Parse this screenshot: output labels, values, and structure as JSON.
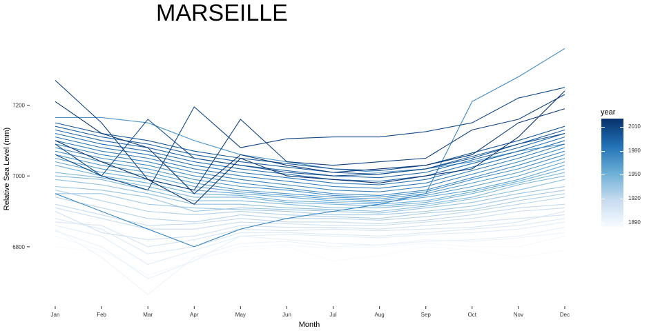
{
  "chart_data": {
    "type": "line",
    "title": "MARSEILLE",
    "xlabel": "Month",
    "ylabel": "Relative Sea Level (mm)",
    "categories": [
      "Jan",
      "Feb",
      "Mar",
      "Apr",
      "May",
      "Jun",
      "Jul",
      "Aug",
      "Sep",
      "Oct",
      "Nov",
      "Dec"
    ],
    "yticks": [
      6800,
      7000,
      7200
    ],
    "ylim": [
      6640,
      7380
    ],
    "grid": false,
    "legend": {
      "title": "year",
      "position": "right",
      "type": "colorbar",
      "range": [
        1885,
        2020
      ],
      "ticks": [
        1890,
        1920,
        1950,
        1980,
        2010
      ],
      "colors": [
        "#f7fbff",
        "#c6dbef",
        "#6baed6",
        "#2171b5",
        "#08306b"
      ]
    },
    "series": [
      {
        "year": 1885,
        "values": [
          6800,
          6785,
          6760,
          6770,
          6790,
          6800,
          6760,
          6775,
          6800,
          6790,
          6770,
          6790
        ]
      },
      {
        "year": 1888,
        "values": [
          6830,
          6790,
          6720,
          6760,
          6800,
          6805,
          6795,
          6800,
          6810,
          6800,
          6800,
          6830
        ]
      },
      {
        "year": 1892,
        "values": [
          6850,
          6770,
          6665,
          6770,
          6810,
          6815,
          6800,
          6805,
          6820,
          6815,
          6825,
          6840
        ]
      },
      {
        "year": 1896,
        "values": [
          6845,
          6800,
          6710,
          6760,
          6830,
          6820,
          6810,
          6805,
          6815,
          6820,
          6830,
          6855
        ]
      },
      {
        "year": 1900,
        "values": [
          6860,
          6830,
          6750,
          6790,
          6830,
          6835,
          6830,
          6825,
          6835,
          6840,
          6850,
          6870
        ]
      },
      {
        "year": 1904,
        "values": [
          6880,
          6850,
          6780,
          6800,
          6840,
          6840,
          6835,
          6830,
          6840,
          6850,
          6860,
          6880
        ]
      },
      {
        "year": 1908,
        "values": [
          6870,
          6860,
          6800,
          6820,
          6850,
          6845,
          6850,
          6845,
          6850,
          6855,
          6870,
          6900
        ]
      },
      {
        "year": 1912,
        "values": [
          6900,
          6840,
          6820,
          6830,
          6860,
          6855,
          6855,
          6850,
          6860,
          6870,
          6880,
          6890
        ]
      },
      {
        "year": 1916,
        "values": [
          6910,
          6880,
          6850,
          6850,
          6870,
          6865,
          6860,
          6860,
          6870,
          6880,
          6900,
          6910
        ]
      },
      {
        "year": 1920,
        "values": [
          6920,
          6890,
          6860,
          6865,
          6880,
          6870,
          6870,
          6865,
          6875,
          6890,
          6910,
          6920
        ]
      },
      {
        "year": 1924,
        "values": [
          6940,
          6910,
          6880,
          6870,
          6890,
          6880,
          6880,
          6875,
          6885,
          6900,
          6920,
          6940
        ]
      },
      {
        "year": 1928,
        "values": [
          6960,
          6930,
          6900,
          6890,
          6900,
          6890,
          6885,
          6880,
          6895,
          6905,
          6930,
          6950
        ]
      },
      {
        "year": 1932,
        "values": [
          6950,
          6950,
          6920,
          6910,
          6905,
          6900,
          6890,
          6890,
          6900,
          6915,
          6940,
          6960
        ]
      },
      {
        "year": 1936,
        "values": [
          6970,
          6960,
          6940,
          6900,
          6910,
          6905,
          6900,
          6895,
          6910,
          6925,
          6950,
          6970
        ]
      },
      {
        "year": 1940,
        "values": [
          6990,
          6975,
          6950,
          6920,
          6920,
          6910,
          6905,
          6900,
          6915,
          6935,
          6960,
          6990
        ]
      },
      {
        "year": 1944,
        "values": [
          7000,
          6990,
          6960,
          6930,
          6930,
          6920,
          6910,
          6910,
          6920,
          6940,
          6975,
          7000
        ]
      },
      {
        "year": 1948,
        "values": [
          7010,
          6995,
          6970,
          6940,
          6940,
          6925,
          6920,
          6915,
          6925,
          6950,
          6980,
          7010
        ]
      },
      {
        "year": 1952,
        "values": [
          7030,
          7000,
          6980,
          6950,
          6945,
          6930,
          6925,
          6920,
          6930,
          6955,
          6985,
          7020
        ]
      },
      {
        "year": 1956,
        "values": [
          7040,
          7010,
          6990,
          6960,
          6950,
          6940,
          6930,
          6925,
          6940,
          6960,
          6990,
          7030
        ]
      },
      {
        "year": 1960,
        "values": [
          7050,
          7020,
          7000,
          6970,
          6955,
          6945,
          6935,
          6930,
          6945,
          6970,
          7000,
          7040
        ]
      },
      {
        "year": 1964,
        "values": [
          7060,
          7030,
          7010,
          6980,
          6960,
          6950,
          6940,
          6935,
          6950,
          6980,
          7010,
          7050
        ]
      },
      {
        "year": 1966,
        "values": [
          7165,
          7165,
          7150,
          7100,
          7060,
          7040,
          7020,
          7010,
          7020,
          7040,
          7070,
          7090
        ]
      },
      {
        "year": 1968,
        "values": [
          7070,
          7040,
          7020,
          6990,
          6970,
          6960,
          6945,
          6940,
          6955,
          6990,
          7020,
          7060
        ]
      },
      {
        "year": 1972,
        "values": [
          7080,
          7050,
          7030,
          7000,
          6980,
          6965,
          6950,
          6945,
          6960,
          6995,
          7030,
          7070
        ]
      },
      {
        "year": 1974,
        "values": [
          6950,
          6900,
          6850,
          6800,
          6850,
          6880,
          6900,
          6920,
          6950,
          7210,
          7280,
          7360
        ]
      },
      {
        "year": 1976,
        "values": [
          7090,
          7060,
          7040,
          7010,
          6990,
          6975,
          6960,
          6955,
          6970,
          7005,
          7040,
          7080
        ]
      },
      {
        "year": 1980,
        "values": [
          7100,
          7070,
          7050,
          7020,
          7000,
          6985,
          6970,
          6965,
          6980,
          7015,
          7050,
          7090
        ]
      },
      {
        "year": 1984,
        "values": [
          7110,
          7080,
          7060,
          7030,
          7010,
          6995,
          6980,
          6975,
          6990,
          7025,
          7060,
          7100
        ]
      },
      {
        "year": 1988,
        "values": [
          7120,
          7090,
          7070,
          7040,
          7020,
          7005,
          6990,
          6985,
          7000,
          7035,
          7070,
          7110
        ]
      },
      {
        "year": 1992,
        "values": [
          7130,
          7100,
          7080,
          7050,
          7030,
          7015,
          7000,
          6995,
          7010,
          7045,
          7080,
          7120
        ]
      },
      {
        "year": 1996,
        "values": [
          7140,
          7110,
          7090,
          7060,
          7040,
          7025,
          7010,
          7005,
          7020,
          7055,
          7090,
          7130
        ]
      },
      {
        "year": 2000,
        "values": [
          7150,
          7120,
          7100,
          7070,
          7050,
          7035,
          7020,
          7015,
          7030,
          7065,
          7100,
          7140
        ]
      },
      {
        "year": 2004,
        "values": [
          7060,
          7000,
          7160,
          7050,
          7030,
          7010,
          7000,
          7005,
          7020,
          7050,
          7090,
          7120
        ]
      },
      {
        "year": 2008,
        "values": [
          7090,
          7000,
          6960,
          7195,
          7080,
          7105,
          7110,
          7110,
          7125,
          7150,
          7220,
          7250
        ]
      },
      {
        "year": 2012,
        "values": [
          7270,
          7150,
          6990,
          6960,
          7160,
          7040,
          7030,
          7040,
          7050,
          7130,
          7160,
          7230
        ]
      },
      {
        "year": 2016,
        "values": [
          7210,
          7120,
          7080,
          6950,
          7060,
          7030,
          7010,
          7020,
          7030,
          7060,
          7150,
          7190
        ]
      },
      {
        "year": 2019,
        "values": [
          7100,
          7040,
          6990,
          6920,
          7050,
          7000,
          6990,
          6980,
          7000,
          7020,
          7110,
          7240
        ]
      }
    ]
  }
}
